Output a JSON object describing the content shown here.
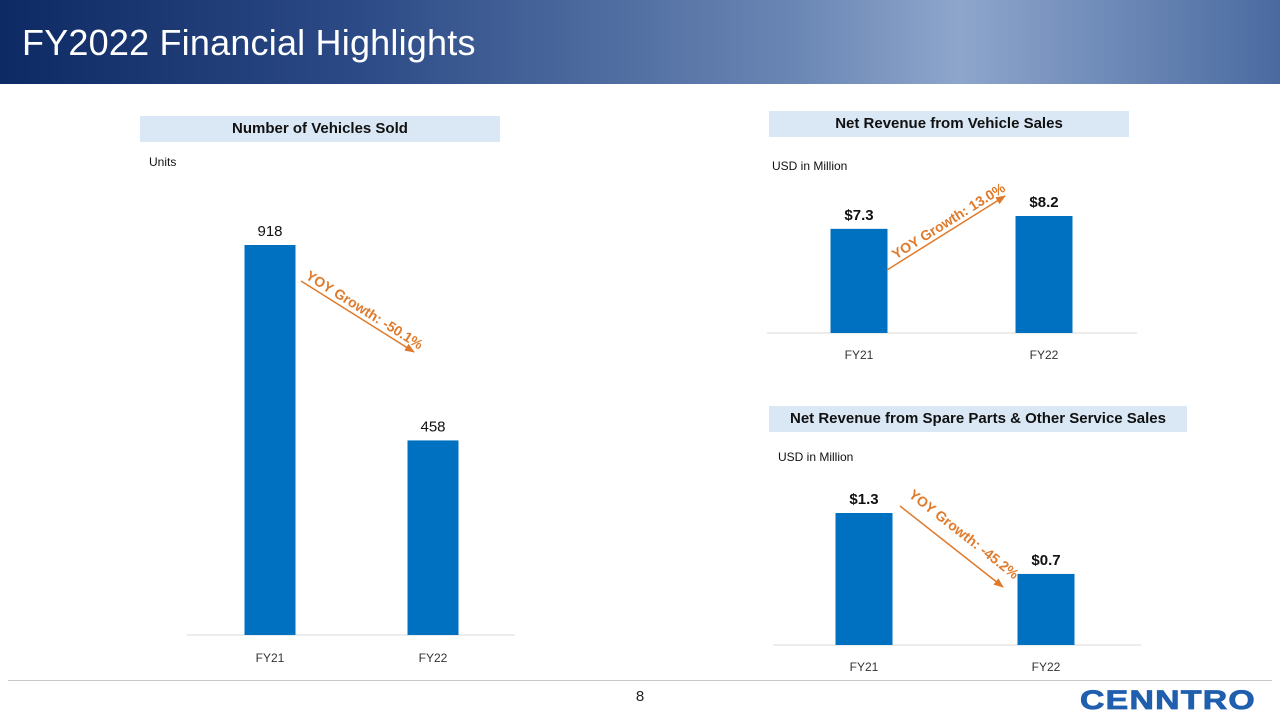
{
  "header": {
    "title": "FY2022 Financial Highlights"
  },
  "colors": {
    "bar": "#0070c0",
    "arrow": "#e07a2a",
    "title_bg": "#dae8f5",
    "logo": "#1f5fae"
  },
  "chart_data": [
    {
      "type": "bar",
      "title": "Number of Vehicles Sold",
      "unit_label": "Units",
      "categories": [
        "FY21",
        "FY22"
      ],
      "values": [
        918,
        458
      ],
      "value_labels": [
        "918",
        "458"
      ],
      "ylim": [
        0,
        918
      ],
      "annotation": "YOY Growth: -50.1%",
      "xlabel": "",
      "ylabel": ""
    },
    {
      "type": "bar",
      "title": "Net Revenue from Vehicle Sales",
      "unit_label": "USD in Million",
      "categories": [
        "FY21",
        "FY22"
      ],
      "values": [
        7.3,
        8.2
      ],
      "value_labels": [
        "$7.3",
        "$8.2"
      ],
      "ylim": [
        0,
        8.2
      ],
      "annotation": "YOY Growth: 13.0%",
      "xlabel": "",
      "ylabel": ""
    },
    {
      "type": "bar",
      "title": "Net Revenue from Spare Parts & Other Service Sales",
      "unit_label": "USD in Million",
      "categories": [
        "FY21",
        "FY22"
      ],
      "values": [
        1.3,
        0.7
      ],
      "value_labels": [
        "$1.3",
        "$0.7"
      ],
      "ylim": [
        0,
        1.3
      ],
      "annotation": "YOY Growth: -45.2%",
      "xlabel": "",
      "ylabel": ""
    }
  ],
  "footer": {
    "page_number": "8",
    "logo_text": "CENNTRO"
  }
}
